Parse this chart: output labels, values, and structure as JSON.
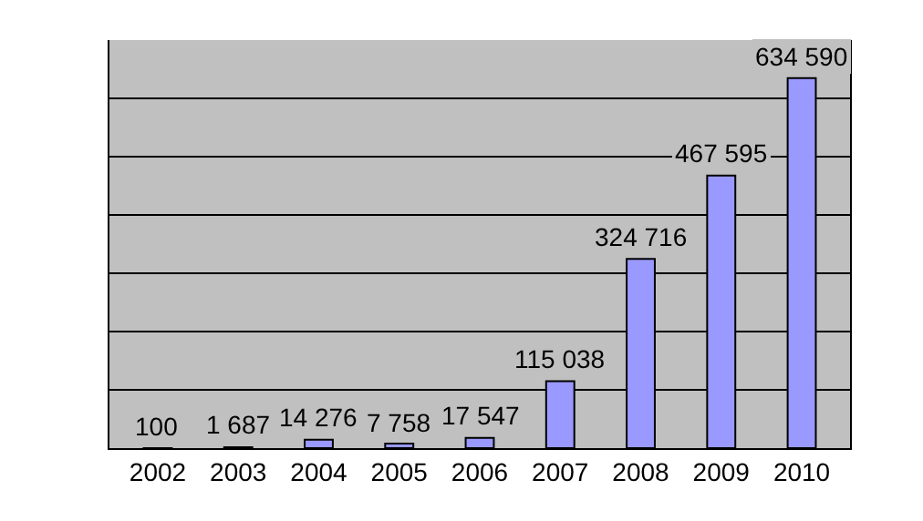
{
  "chart_data": {
    "type": "bar",
    "categories": [
      "2002",
      "2003",
      "2004",
      "2005",
      "2006",
      "2007",
      "2008",
      "2009",
      "2010"
    ],
    "values": [
      100,
      1687,
      14276,
      7758,
      17547,
      115038,
      324716,
      467595,
      634590
    ],
    "value_labels": [
      "100",
      "1 687",
      "14 276",
      "7 758",
      "17 547",
      "115 038",
      "324 716",
      "467 595",
      "634 590"
    ],
    "color": "#9999ff",
    "ylim": [
      0,
      700000
    ],
    "yticks": [
      {
        "value": 0,
        "label": null
      },
      {
        "value": 100000,
        "label": null
      },
      {
        "value": 200000,
        "label": null
      },
      {
        "value": 300000,
        "label": null
      },
      {
        "value": 400000,
        "label": null
      },
      {
        "value": 500000,
        "label": null
      },
      {
        "value": 600000,
        "label": null
      },
      {
        "value": 700000,
        "label": null
      }
    ],
    "grid": "y",
    "tick_labels": "x",
    "legend": false
  }
}
